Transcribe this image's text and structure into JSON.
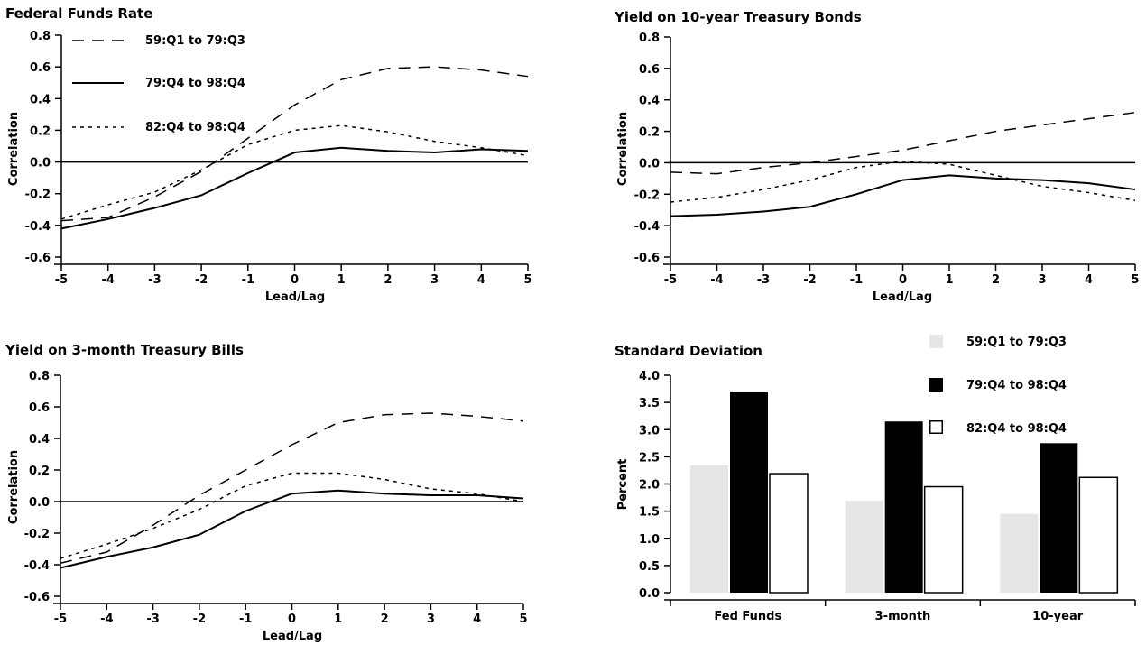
{
  "chart_data": [
    {
      "type": "line",
      "title": "Federal Funds Rate",
      "xlabel": "Lead/Lag",
      "ylabel": "Correlation",
      "x": [
        -5,
        -4,
        -3,
        -2,
        -1,
        0,
        1,
        2,
        3,
        4,
        5
      ],
      "xticks": [
        "-5",
        "-4",
        "-3",
        "-2",
        "-1",
        "0",
        "1",
        "2",
        "3",
        "4",
        "5"
      ],
      "yticks": [
        "-0.6",
        "-0.4",
        "-0.2",
        "0.0",
        "0.2",
        "0.4",
        "0.6",
        "0.8"
      ],
      "xlim": [
        -5,
        5
      ],
      "ylim": [
        -0.6,
        0.8
      ],
      "zero_line": true,
      "legend": "top-left",
      "series": [
        {
          "name": "59:Q1 to 79:Q3",
          "style": "long-dash",
          "values": [
            -0.37,
            -0.35,
            -0.22,
            -0.06,
            0.15,
            0.36,
            0.52,
            0.59,
            0.6,
            0.58,
            0.54
          ]
        },
        {
          "name": "79:Q4 to 98:Q4",
          "style": "solid",
          "values": [
            -0.42,
            -0.36,
            -0.29,
            -0.21,
            -0.07,
            0.06,
            0.09,
            0.07,
            0.06,
            0.08,
            0.07
          ]
        },
        {
          "name": "82:Q4 to 98:Q4",
          "style": "short-dash",
          "values": [
            -0.36,
            -0.27,
            -0.19,
            -0.05,
            0.11,
            0.2,
            0.23,
            0.19,
            0.13,
            0.09,
            0.04
          ]
        }
      ]
    },
    {
      "type": "line",
      "title": "Yield on 10-year Treasury Bonds",
      "xlabel": "Lead/Lag",
      "ylabel": "Correlation",
      "x": [
        -5,
        -4,
        -3,
        -2,
        -1,
        0,
        1,
        2,
        3,
        4,
        5
      ],
      "xticks": [
        "-5",
        "-4",
        "-3",
        "-2",
        "-1",
        "0",
        "1",
        "2",
        "3",
        "4",
        "5"
      ],
      "yticks": [
        "-0.6",
        "-0.4",
        "-0.2",
        "0.0",
        "0.2",
        "0.4",
        "0.6",
        "0.8"
      ],
      "xlim": [
        -5,
        5
      ],
      "ylim": [
        -0.6,
        0.8
      ],
      "zero_line": true,
      "series": [
        {
          "name": "59:Q1 to 79:Q3",
          "style": "long-dash",
          "values": [
            -0.06,
            -0.07,
            -0.03,
            0.0,
            0.04,
            0.08,
            0.14,
            0.2,
            0.24,
            0.28,
            0.32
          ]
        },
        {
          "name": "79:Q4 to 98:Q4",
          "style": "solid",
          "values": [
            -0.34,
            -0.33,
            -0.31,
            -0.28,
            -0.2,
            -0.11,
            -0.08,
            -0.1,
            -0.11,
            -0.13,
            -0.17
          ]
        },
        {
          "name": "82:Q4 to 98:Q4",
          "style": "short-dash",
          "values": [
            -0.25,
            -0.22,
            -0.17,
            -0.11,
            -0.03,
            0.01,
            -0.01,
            -0.08,
            -0.15,
            -0.19,
            -0.24
          ]
        }
      ]
    },
    {
      "type": "line",
      "title": "Yield on 3-month Treasury Bills",
      "xlabel": "Lead/Lag",
      "ylabel": "Correlation",
      "x": [
        -5,
        -4,
        -3,
        -2,
        -1,
        0,
        1,
        2,
        3,
        4,
        5
      ],
      "xticks": [
        "-5",
        "-4",
        "-3",
        "-2",
        "-1",
        "0",
        "1",
        "2",
        "3",
        "4",
        "5"
      ],
      "yticks": [
        "-0.6",
        "-0.4",
        "-0.2",
        "0.0",
        "0.2",
        "0.4",
        "0.6",
        "0.8"
      ],
      "xlim": [
        -5,
        5
      ],
      "ylim": [
        -0.6,
        0.8
      ],
      "zero_line": true,
      "series": [
        {
          "name": "59:Q1 to 79:Q3",
          "style": "long-dash",
          "values": [
            -0.39,
            -0.32,
            -0.15,
            0.04,
            0.2,
            0.36,
            0.5,
            0.55,
            0.56,
            0.54,
            0.51
          ]
        },
        {
          "name": "79:Q4 to 98:Q4",
          "style": "solid",
          "values": [
            -0.42,
            -0.35,
            -0.29,
            -0.21,
            -0.06,
            0.05,
            0.07,
            0.05,
            0.04,
            0.04,
            0.02
          ]
        },
        {
          "name": "82:Q4 to 98:Q4",
          "style": "short-dash",
          "values": [
            -0.36,
            -0.27,
            -0.17,
            -0.05,
            0.1,
            0.18,
            0.18,
            0.14,
            0.08,
            0.05,
            0.0
          ]
        }
      ]
    },
    {
      "type": "bar",
      "title": "Standard Deviation",
      "ylabel": "Percent",
      "xlabel": "",
      "categories": [
        "Fed Funds",
        "3-month",
        "10-year"
      ],
      "yticks": [
        "0.0",
        "0.5",
        "1.0",
        "1.5",
        "2.0",
        "2.5",
        "3.0",
        "3.5",
        "4.0"
      ],
      "ylim": [
        0,
        4.0
      ],
      "legend": "top-right",
      "series": [
        {
          "name": "59:Q1 to 79:Q3",
          "fill": "#e6e6e6",
          "values": [
            2.34,
            1.69,
            1.45
          ]
        },
        {
          "name": "79:Q4 to 98:Q4",
          "fill": "#000000",
          "values": [
            3.7,
            3.15,
            2.75
          ]
        },
        {
          "name": "82:Q4 to 98:Q4",
          "fill": "#ffffff",
          "values": [
            2.19,
            1.95,
            2.12
          ]
        }
      ]
    }
  ]
}
